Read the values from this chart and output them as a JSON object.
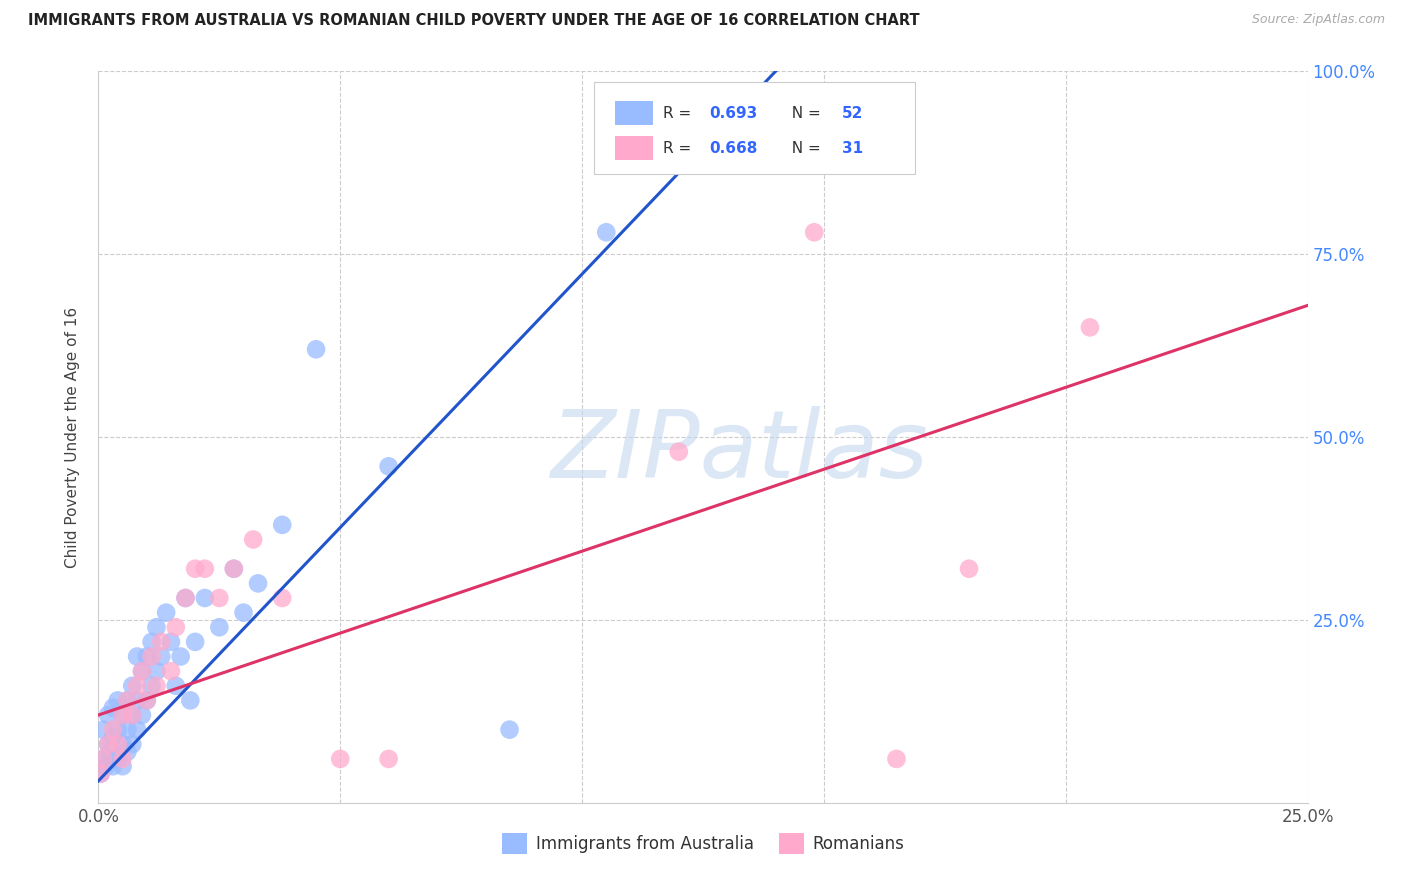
{
  "title": "IMMIGRANTS FROM AUSTRALIA VS ROMANIAN CHILD POVERTY UNDER THE AGE OF 16 CORRELATION CHART",
  "source": "Source: ZipAtlas.com",
  "ylabel": "Child Poverty Under the Age of 16",
  "xlim": [
    0,
    0.25
  ],
  "ylim": [
    0,
    1.0
  ],
  "legend_labels": [
    "Immigrants from Australia",
    "Romanians"
  ],
  "r_blue_val": "0.693",
  "n_blue_val": "52",
  "r_pink_val": "0.668",
  "n_pink_val": "31",
  "blue_scatter_color": "#99bbff",
  "pink_scatter_color": "#ffaacc",
  "blue_line_color": "#2255cc",
  "pink_line_color": "#dd3366",
  "watermark_color": "#c5d8f0",
  "watermark": "ZIPatlas",
  "blue_scatter_x": [
    0.0005,
    0.001,
    0.001,
    0.0015,
    0.002,
    0.002,
    0.0025,
    0.003,
    0.003,
    0.003,
    0.004,
    0.004,
    0.004,
    0.005,
    0.005,
    0.005,
    0.006,
    0.006,
    0.006,
    0.007,
    0.007,
    0.007,
    0.008,
    0.008,
    0.008,
    0.009,
    0.009,
    0.01,
    0.01,
    0.011,
    0.011,
    0.012,
    0.012,
    0.013,
    0.014,
    0.015,
    0.016,
    0.017,
    0.018,
    0.019,
    0.02,
    0.022,
    0.025,
    0.028,
    0.03,
    0.033,
    0.038,
    0.045,
    0.06,
    0.085,
    0.105,
    0.13
  ],
  "blue_scatter_y": [
    0.04,
    0.06,
    0.1,
    0.05,
    0.08,
    0.12,
    0.07,
    0.05,
    0.09,
    0.13,
    0.06,
    0.1,
    0.14,
    0.05,
    0.08,
    0.12,
    0.07,
    0.1,
    0.14,
    0.08,
    0.12,
    0.16,
    0.1,
    0.14,
    0.2,
    0.12,
    0.18,
    0.14,
    0.2,
    0.16,
    0.22,
    0.18,
    0.24,
    0.2,
    0.26,
    0.22,
    0.16,
    0.2,
    0.28,
    0.14,
    0.22,
    0.28,
    0.24,
    0.32,
    0.26,
    0.3,
    0.38,
    0.62,
    0.46,
    0.1,
    0.78,
    0.95
  ],
  "pink_scatter_x": [
    0.0005,
    0.001,
    0.002,
    0.003,
    0.004,
    0.005,
    0.005,
    0.006,
    0.007,
    0.008,
    0.009,
    0.01,
    0.011,
    0.012,
    0.013,
    0.015,
    0.016,
    0.018,
    0.02,
    0.022,
    0.025,
    0.028,
    0.032,
    0.038,
    0.05,
    0.06,
    0.12,
    0.148,
    0.165,
    0.18,
    0.205
  ],
  "pink_scatter_y": [
    0.04,
    0.06,
    0.08,
    0.1,
    0.08,
    0.06,
    0.12,
    0.14,
    0.12,
    0.16,
    0.18,
    0.14,
    0.2,
    0.16,
    0.22,
    0.18,
    0.24,
    0.28,
    0.32,
    0.32,
    0.28,
    0.32,
    0.36,
    0.28,
    0.06,
    0.06,
    0.48,
    0.78,
    0.06,
    0.32,
    0.65
  ],
  "blue_line_x": [
    0.0,
    0.14
  ],
  "blue_line_y": [
    0.03,
    1.0
  ],
  "pink_line_x": [
    0.0,
    0.25
  ],
  "pink_line_y": [
    0.12,
    0.68
  ]
}
